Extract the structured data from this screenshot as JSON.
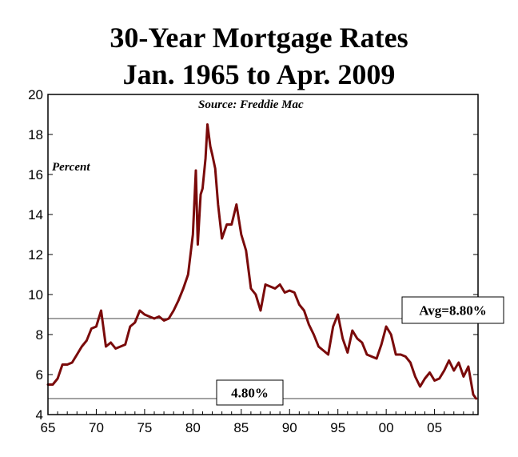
{
  "chart_data": {
    "type": "line",
    "title_lines": [
      "30-Year Mortgage Rates",
      "Jan. 1965 to Apr. 2009"
    ],
    "source_note": "Source: Freddie Mac",
    "ylabel": "Percent",
    "xlim": [
      1965,
      2009.5
    ],
    "ylim": [
      4,
      20
    ],
    "x_ticks": [
      1965,
      1970,
      1975,
      1980,
      1985,
      1990,
      1995,
      2000,
      2005
    ],
    "x_tick_labels": [
      "65",
      "70",
      "75",
      "80",
      "85",
      "90",
      "95",
      "00",
      "05"
    ],
    "y_ticks": [
      4,
      6,
      8,
      10,
      12,
      14,
      16,
      18,
      20
    ],
    "y_tick_labels": [
      "4",
      "6",
      "8",
      "10",
      "12",
      "14",
      "16",
      "18",
      "20"
    ],
    "line_color": "#7a0a0a",
    "reference_lines": [
      {
        "value": 8.8,
        "label": "Avg=8.80%"
      },
      {
        "value": 4.8,
        "label": "4.80%"
      }
    ],
    "series": [
      {
        "x": [
          1965.0,
          1965.5,
          1966.0,
          1966.5,
          1967.0,
          1967.5,
          1968.0,
          1968.5,
          1969.0,
          1969.5,
          1970.0,
          1970.5,
          1971.0,
          1971.5,
          1972.0,
          1972.5,
          1973.0,
          1973.5,
          1974.0,
          1974.5,
          1975.0,
          1975.5,
          1976.0,
          1976.5,
          1977.0,
          1977.5,
          1978.0,
          1978.5,
          1979.0,
          1979.5,
          1980.0,
          1980.3,
          1980.5,
          1980.8,
          1981.0,
          1981.3,
          1981.5,
          1981.8,
          1982.0,
          1982.3,
          1982.6,
          1983.0,
          1983.5,
          1984.0,
          1984.5,
          1985.0,
          1985.5,
          1986.0,
          1986.5,
          1987.0,
          1987.5,
          1988.0,
          1988.5,
          1989.0,
          1989.5,
          1990.0,
          1990.5,
          1991.0,
          1991.5,
          1992.0,
          1992.5,
          1993.0,
          1993.5,
          1994.0,
          1994.5,
          1995.0,
          1995.5,
          1996.0,
          1996.5,
          1997.0,
          1997.5,
          1998.0,
          1998.5,
          1999.0,
          1999.5,
          2000.0,
          2000.5,
          2001.0,
          2001.5,
          2002.0,
          2002.5,
          2003.0,
          2003.5,
          2004.0,
          2004.5,
          2005.0,
          2005.5,
          2006.0,
          2006.5,
          2007.0,
          2007.5,
          2008.0,
          2008.5,
          2009.0,
          2009.3
        ],
        "values": [
          5.5,
          5.5,
          5.8,
          6.5,
          6.5,
          6.6,
          7.0,
          7.4,
          7.7,
          8.3,
          8.4,
          9.2,
          7.4,
          7.6,
          7.3,
          7.4,
          7.5,
          8.4,
          8.6,
          9.2,
          9.0,
          8.9,
          8.8,
          8.9,
          8.7,
          8.8,
          9.2,
          9.7,
          10.3,
          11.0,
          13.0,
          16.2,
          12.5,
          15.0,
          15.3,
          16.8,
          18.5,
          17.4,
          17.0,
          16.3,
          14.5,
          12.8,
          13.5,
          13.5,
          14.5,
          13.0,
          12.2,
          10.3,
          10.0,
          9.2,
          10.5,
          10.4,
          10.3,
          10.5,
          10.1,
          10.2,
          10.1,
          9.5,
          9.2,
          8.5,
          8.0,
          7.4,
          7.2,
          7.0,
          8.4,
          9.0,
          7.8,
          7.1,
          8.2,
          7.8,
          7.6,
          7.0,
          6.9,
          6.8,
          7.5,
          8.4,
          8.0,
          7.0,
          7.0,
          6.9,
          6.6,
          5.9,
          5.4,
          5.8,
          6.1,
          5.7,
          5.8,
          6.2,
          6.7,
          6.2,
          6.6,
          5.9,
          6.4,
          5.0,
          4.8
        ]
      }
    ]
  }
}
